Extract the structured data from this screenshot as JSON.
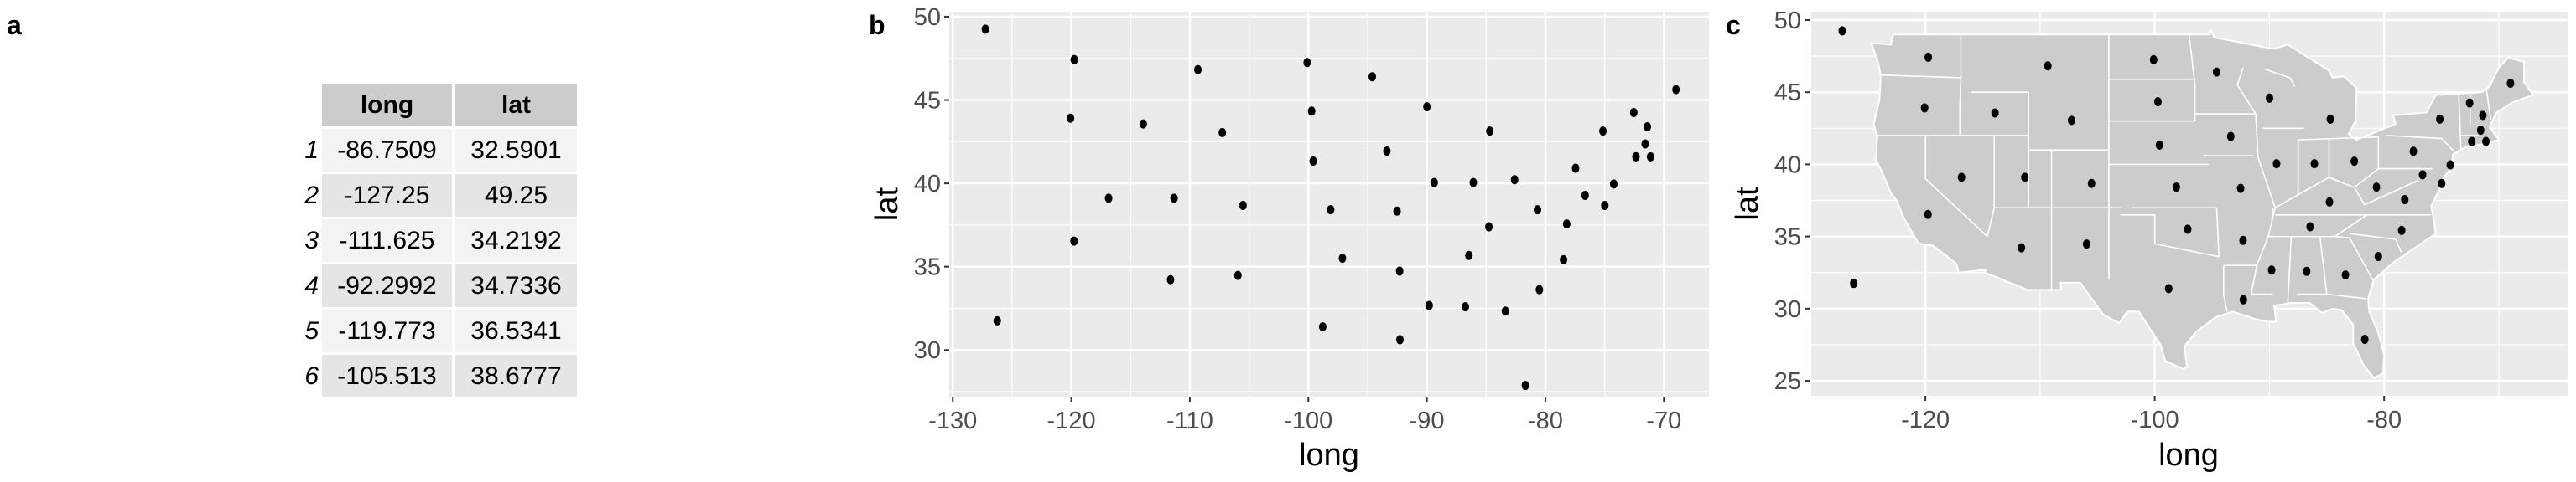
{
  "panels": {
    "a": "a",
    "b": "b",
    "c": "c"
  },
  "table": {
    "headers": [
      "long",
      "lat"
    ],
    "rows": [
      {
        "index": "1",
        "long": "-86.7509",
        "lat": "32.5901"
      },
      {
        "index": "2",
        "long": "-127.25",
        "lat": "49.25"
      },
      {
        "index": "3",
        "long": "-111.625",
        "lat": "34.2192"
      },
      {
        "index": "4",
        "long": "-92.2992",
        "lat": "34.7336"
      },
      {
        "index": "5",
        "long": "-119.773",
        "lat": "36.5341"
      },
      {
        "index": "6",
        "long": "-105.513",
        "lat": "38.6777"
      }
    ]
  },
  "colors": {
    "panel_bg": "#ebebeb",
    "grid": "#ffffff",
    "map_fill": "#cccccc",
    "point": "#000000",
    "tick_text": "#4d4d4d"
  },
  "chart_data": [
    {
      "panel": "b",
      "type": "scatter",
      "xlabel": "long",
      "ylabel": "lat",
      "xlim": [
        -130.3,
        -66.2
      ],
      "ylim": [
        27.2,
        50.3
      ],
      "xticks": [
        -130,
        -120,
        -110,
        -100,
        -90,
        -80,
        -70
      ],
      "yticks": [
        30,
        35,
        40,
        45,
        50
      ],
      "grid": true,
      "x": [
        -86.7509,
        -127.25,
        -111.625,
        -92.2992,
        -119.773,
        -105.513,
        -72.3573,
        -74.9841,
        -81.685,
        -83.3736,
        -126.25,
        -113.93,
        -89.3776,
        -86.0808,
        -93.3714,
        -98.1156,
        -84.7674,
        -92.2724,
        -68.9801,
        -76.6459,
        -71.58,
        -84.687,
        -94.6043,
        -89.8065,
        -92.5137,
        -109.32,
        -99.5898,
        -116.851,
        -71.3924,
        -74.2336,
        -105.942,
        -75.1449,
        -78.4686,
        -100.099,
        -82.5963,
        -97.1239,
        -120.068,
        -77.45,
        -71.1244,
        -80.5056,
        -99.7238,
        -86.456,
        -98.7857,
        -111.33,
        -72.545,
        -78.2005,
        -119.746,
        -80.6665,
        -89.9941,
        -107.256
      ],
      "y": [
        32.5901,
        49.25,
        34.2192,
        34.7336,
        36.5341,
        38.6777,
        41.5928,
        38.6777,
        27.8744,
        32.3329,
        31.75,
        43.5648,
        40.0495,
        40.0495,
        41.9358,
        38.4204,
        37.3915,
        30.6181,
        45.6226,
        39.2778,
        42.3645,
        43.1361,
        46.3943,
        32.6758,
        38.3347,
        46.823,
        41.3356,
        39.1063,
        43.3934,
        39.9637,
        34.4764,
        43.1361,
        35.4195,
        47.2517,
        40.221,
        35.5053,
        43.9078,
        40.9069,
        41.5928,
        33.619,
        44.3365,
        35.6767,
        31.3897,
        39.1063,
        44.2508,
        37.563,
        47.4231,
        38.4204,
        44.5937,
        43.0504
      ]
    },
    {
      "panel": "c",
      "type": "scatter",
      "background_layer": "US state map",
      "xlabel": "long",
      "ylabel": "lat",
      "xlim": [
        -130.1,
        -64.0
      ],
      "ylim": [
        23.96,
        50.58
      ],
      "xticks": [
        -120,
        -100,
        -80
      ],
      "yticks": [
        25,
        30,
        35,
        40,
        45,
        50
      ],
      "grid": true,
      "same_points_as": "b"
    }
  ]
}
